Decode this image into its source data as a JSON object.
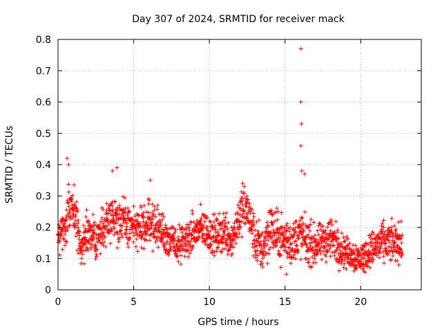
{
  "chart_data": {
    "type": "scatter",
    "title": "Day 307 of 2024, SRMTID for receiver mack",
    "xlabel": "GPS time / hours",
    "ylabel": "SRMTID / TECUs",
    "xlim": [
      0,
      24
    ],
    "ylim": [
      0,
      0.8
    ],
    "xticks": [
      "0",
      "5",
      "10",
      "15",
      "20"
    ],
    "xtick_values": [
      0,
      5,
      10,
      15,
      20
    ],
    "yticks": [
      "0",
      "0.1",
      "0.2",
      "0.3",
      "0.4",
      "0.5",
      "0.6",
      "0.7",
      "0.8"
    ],
    "ytick_values": [
      0,
      0.1,
      0.2,
      0.3,
      0.4,
      0.5,
      0.6,
      0.7,
      0.8
    ],
    "grid": true,
    "marker": "+",
    "color": "#ff0000",
    "x_range_of_points": [
      0,
      22.75
    ],
    "trend": {
      "x": [
        0,
        0.5,
        1.0,
        1.5,
        2,
        2.5,
        3,
        3.5,
        4,
        4.5,
        5,
        5.5,
        6,
        6.5,
        7,
        7.5,
        8,
        8.5,
        9,
        9.5,
        10,
        10.5,
        11,
        11.5,
        12,
        12.5,
        13,
        13.5,
        14,
        14.5,
        15,
        15.5,
        16,
        16.5,
        17,
        17.5,
        18,
        18.5,
        19,
        19.5,
        20,
        20.5,
        21,
        21.5,
        22,
        22.5
      ],
      "y": [
        0.18,
        0.22,
        0.27,
        0.14,
        0.18,
        0.16,
        0.2,
        0.24,
        0.22,
        0.21,
        0.2,
        0.19,
        0.22,
        0.2,
        0.18,
        0.15,
        0.14,
        0.16,
        0.18,
        0.2,
        0.18,
        0.17,
        0.19,
        0.16,
        0.24,
        0.26,
        0.16,
        0.13,
        0.2,
        0.17,
        0.16,
        0.15,
        0.18,
        0.15,
        0.14,
        0.15,
        0.17,
        0.14,
        0.12,
        0.11,
        0.1,
        0.12,
        0.14,
        0.15,
        0.15,
        0.15
      ],
      "spread": [
        0.05,
        0.06,
        0.07,
        0.05,
        0.06,
        0.05,
        0.06,
        0.06,
        0.06,
        0.06,
        0.05,
        0.06,
        0.06,
        0.05,
        0.05,
        0.05,
        0.05,
        0.05,
        0.05,
        0.05,
        0.05,
        0.05,
        0.06,
        0.05,
        0.06,
        0.06,
        0.06,
        0.06,
        0.07,
        0.06,
        0.06,
        0.06,
        0.06,
        0.06,
        0.05,
        0.05,
        0.06,
        0.05,
        0.04,
        0.04,
        0.04,
        0.04,
        0.05,
        0.05,
        0.05,
        0.05
      ]
    },
    "notable_points": [
      {
        "x": 0.6,
        "y": 0.42
      },
      {
        "x": 0.7,
        "y": 0.4
      },
      {
        "x": 3.6,
        "y": 0.38
      },
      {
        "x": 3.9,
        "y": 0.39
      },
      {
        "x": 6.1,
        "y": 0.35
      },
      {
        "x": 12.2,
        "y": 0.34
      },
      {
        "x": 16.05,
        "y": 0.77
      },
      {
        "x": 16.05,
        "y": 0.6
      },
      {
        "x": 16.08,
        "y": 0.53
      },
      {
        "x": 16.05,
        "y": 0.46
      },
      {
        "x": 16.1,
        "y": 0.38
      },
      {
        "x": 16.3,
        "y": 0.37
      },
      {
        "x": 15.1,
        "y": 0.05
      },
      {
        "x": 20.2,
        "y": 0.06
      }
    ]
  }
}
